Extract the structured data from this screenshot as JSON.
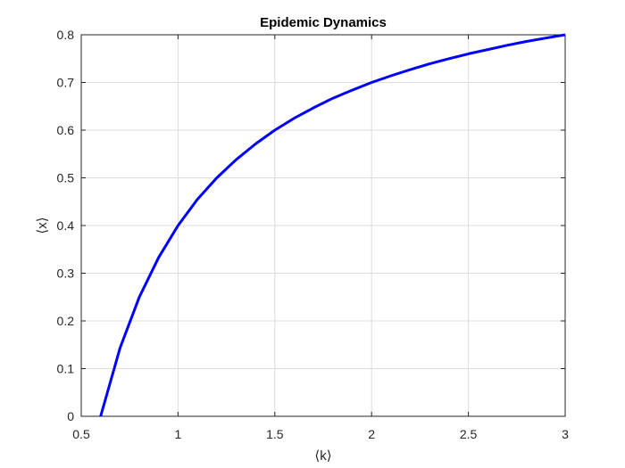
{
  "chart_data": {
    "type": "line",
    "title": "Epidemic Dynamics",
    "xlabel": "⟨k⟩",
    "ylabel": "⟨x⟩",
    "xlim": [
      0.5,
      3
    ],
    "ylim": [
      0,
      0.8
    ],
    "xticks": [
      0.5,
      1,
      1.5,
      2,
      2.5,
      3
    ],
    "xtick_labels": [
      "0.5",
      "1",
      "1.5",
      "2",
      "2.5",
      "3"
    ],
    "yticks": [
      0,
      0.1,
      0.2,
      0.3,
      0.4,
      0.5,
      0.6,
      0.7,
      0.8
    ],
    "ytick_labels": [
      "0",
      "0.1",
      "0.2",
      "0.3",
      "0.4",
      "0.5",
      "0.6",
      "0.7",
      "0.8"
    ],
    "grid": true,
    "series": [
      {
        "color": "#0000ff",
        "x": [
          0.6,
          0.7,
          0.8,
          0.9,
          1.0,
          1.1,
          1.2,
          1.3,
          1.4,
          1.5,
          1.6,
          1.7,
          1.8,
          1.9,
          2.0,
          2.1,
          2.2,
          2.3,
          2.4,
          2.5,
          2.6,
          2.7,
          2.8,
          2.9,
          3.0
        ],
        "y": [
          0.0,
          0.143,
          0.25,
          0.333,
          0.4,
          0.455,
          0.5,
          0.538,
          0.571,
          0.6,
          0.625,
          0.647,
          0.667,
          0.684,
          0.7,
          0.714,
          0.727,
          0.739,
          0.75,
          0.76,
          0.769,
          0.778,
          0.786,
          0.793,
          0.8
        ]
      }
    ]
  }
}
